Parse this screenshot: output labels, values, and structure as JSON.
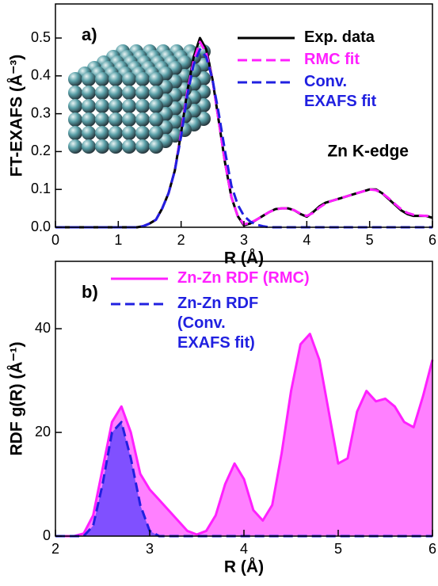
{
  "chart_data": [
    {
      "type": "line",
      "annotation": "a)",
      "note": "Zn K-edge",
      "xlabel": "R (Å)",
      "ylabel": "FT-EXAFS (Å⁻³)",
      "x": [
        0,
        0.1,
        0.2,
        0.3,
        0.4,
        0.5,
        0.6,
        0.7,
        0.8,
        0.9,
        1,
        1.1,
        1.2,
        1.3,
        1.4,
        1.5,
        1.6,
        1.7,
        1.8,
        1.9,
        2,
        2.1,
        2.2,
        2.3,
        2.4,
        2.5,
        2.6,
        2.7,
        2.8,
        2.9,
        3,
        3.1,
        3.2,
        3.3,
        3.4,
        3.5,
        3.6,
        3.7,
        3.8,
        3.9,
        4,
        4.1,
        4.2,
        4.3,
        4.4,
        4.5,
        4.6,
        4.7,
        4.8,
        4.9,
        5,
        5.1,
        5.2,
        5.3,
        5.4,
        5.5,
        5.6,
        5.7,
        5.8,
        5.9,
        6
      ],
      "xlim": [
        0,
        6
      ],
      "xticks": [
        0,
        1,
        2,
        3,
        4,
        5,
        6
      ],
      "ylim": [
        0,
        0.59
      ],
      "yticks": [
        {
          "value": 0,
          "label": "0.0"
        },
        0.1,
        0.2,
        0.3,
        0.4,
        0.5
      ],
      "legend": "upper right",
      "series": [
        {
          "name": "Exp. data",
          "color": "#000000",
          "dash": false,
          "values": [
            0,
            0,
            0,
            0,
            0,
            0,
            0,
            0,
            0,
            0,
            0,
            0,
            0,
            0,
            0.003,
            0.01,
            0.02,
            0.05,
            0.09,
            0.15,
            0.25,
            0.36,
            0.45,
            0.5,
            0.47,
            0.39,
            0.28,
            0.17,
            0.08,
            0.03,
            0.005,
            0.01,
            0.02,
            0.03,
            0.04,
            0.048,
            0.05,
            0.05,
            0.045,
            0.035,
            0.028,
            0.04,
            0.055,
            0.065,
            0.07,
            0.075,
            0.08,
            0.085,
            0.09,
            0.095,
            0.1,
            0.1,
            0.09,
            0.075,
            0.06,
            0.045,
            0.035,
            0.03,
            0.03,
            0.03,
            0.025
          ]
        },
        {
          "name": "RMC fit",
          "color": "#ff20ff",
          "dash": true,
          "values": [
            0,
            0,
            0,
            0,
            0,
            0,
            0,
            0,
            0,
            0,
            0,
            0,
            0,
            0,
            0.003,
            0.01,
            0.02,
            0.05,
            0.09,
            0.15,
            0.25,
            0.36,
            0.44,
            0.49,
            0.46,
            0.39,
            0.28,
            0.17,
            0.08,
            0.03,
            0.008,
            0.012,
            0.02,
            0.03,
            0.04,
            0.047,
            0.05,
            0.05,
            0.045,
            0.036,
            0.03,
            0.038,
            0.052,
            0.063,
            0.07,
            0.075,
            0.08,
            0.085,
            0.09,
            0.095,
            0.1,
            0.098,
            0.09,
            0.077,
            0.062,
            0.048,
            0.038,
            0.033,
            0.031,
            0.03,
            0.03
          ]
        },
        {
          "name": "Conv. EXAFS fit",
          "color": "#2020e0",
          "dash": true,
          "values": [
            0,
            0,
            0,
            0,
            0,
            0,
            0,
            0,
            0,
            0,
            0,
            0,
            0,
            0,
            0.003,
            0.01,
            0.02,
            0.05,
            0.09,
            0.15,
            0.24,
            0.35,
            0.43,
            0.47,
            0.45,
            0.39,
            0.3,
            0.2,
            0.11,
            0.06,
            0.03,
            0.015,
            0.007,
            0.003,
            0,
            0,
            0,
            0,
            0,
            0,
            0,
            0,
            0,
            0,
            0,
            0,
            0,
            0,
            0,
            0,
            0,
            0,
            0,
            0,
            0,
            0,
            0,
            0,
            0,
            0,
            0
          ]
        }
      ]
    },
    {
      "type": "area",
      "annotation": "b)",
      "xlabel": "R (Å)",
      "ylabel": "RDF g(R) (Å⁻¹)",
      "x": [
        2,
        2.1,
        2.2,
        2.3,
        2.4,
        2.5,
        2.6,
        2.7,
        2.8,
        2.9,
        3,
        3.1,
        3.2,
        3.3,
        3.4,
        3.5,
        3.6,
        3.7,
        3.8,
        3.9,
        4,
        4.1,
        4.2,
        4.3,
        4.4,
        4.5,
        4.6,
        4.7,
        4.8,
        4.9,
        5,
        5.1,
        5.2,
        5.3,
        5.4,
        5.5,
        5.6,
        5.7,
        5.8,
        5.9,
        6
      ],
      "xlim": [
        2,
        6
      ],
      "xticks": [
        2,
        3,
        4,
        5,
        6
      ],
      "ylim": [
        0,
        53
      ],
      "yticks": [
        0,
        20,
        40
      ],
      "legend": "upper left",
      "series": [
        {
          "name": "Zn-Zn RDF (RMC)",
          "color": "#ff20ff",
          "fill": "#ff80ff",
          "dash": false,
          "values": [
            0,
            0,
            0,
            0.5,
            4,
            13,
            22,
            25,
            20,
            12,
            9,
            7,
            5,
            3,
            1,
            0.3,
            1,
            4,
            10,
            14,
            11,
            5,
            3,
            6,
            16,
            28,
            37,
            39,
            34,
            24,
            14,
            15,
            24,
            28,
            26,
            26.5,
            25,
            22,
            21,
            27,
            34
          ]
        },
        {
          "name": "Zn-Zn RDF (Conv. EXAFS fit)",
          "color": "#2020e0",
          "fill": "#8050ff",
          "dash": true,
          "values": [
            0,
            0,
            0,
            0,
            2,
            10,
            20,
            22,
            15,
            6,
            1,
            0,
            0,
            0,
            0,
            0,
            0,
            0,
            0,
            0,
            0,
            0,
            0,
            0,
            0,
            0,
            0,
            0,
            0,
            0,
            0,
            0,
            0,
            0,
            0,
            0,
            0,
            0,
            0,
            0,
            0
          ]
        }
      ]
    }
  ]
}
